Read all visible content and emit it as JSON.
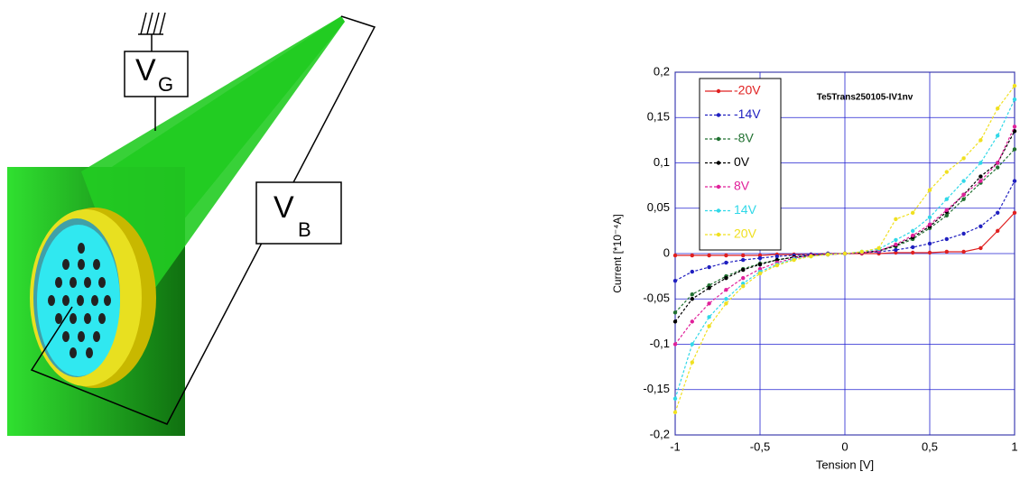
{
  "diagram": {
    "gate_label": {
      "main": "V",
      "sub": "G"
    },
    "bias_label": {
      "main": "V",
      "sub": "B"
    }
  },
  "chart_data": {
    "type": "line",
    "title": "Te5Trans250105-IV1nv",
    "x_label": "Tension [V]",
    "y_label": "Current [*10⁻⁴A]",
    "x": [
      -1,
      -0.9,
      -0.8,
      -0.7,
      -0.6,
      -0.5,
      -0.4,
      -0.3,
      -0.2,
      -0.1,
      0,
      0.1,
      0.2,
      0.3,
      0.4,
      0.5,
      0.6,
      0.7,
      0.8,
      0.9,
      1
    ],
    "series": [
      {
        "name": "-20V",
        "color": "#e02020",
        "values": [
          -0.002,
          -0.002,
          -0.002,
          -0.002,
          -0.002,
          -0.002,
          -0.001,
          -0.001,
          -0.001,
          0,
          0,
          0,
          0,
          0.001,
          0.001,
          0.001,
          0.002,
          0.002,
          0.006,
          0.025,
          0.045
        ]
      },
      {
        "name": "-14V",
        "color": "#2020c0",
        "values": [
          -0.03,
          -0.02,
          -0.015,
          -0.01,
          -0.007,
          -0.005,
          -0.003,
          -0.002,
          -0.001,
          0,
          0,
          0.001,
          0.002,
          0.004,
          0.007,
          0.011,
          0.016,
          0.022,
          0.03,
          0.045,
          0.08
        ]
      },
      {
        "name": "-8V",
        "color": "#207030",
        "values": [
          -0.065,
          -0.045,
          -0.035,
          -0.025,
          -0.017,
          -0.011,
          -0.007,
          -0.004,
          -0.002,
          -0.001,
          0,
          0.001,
          0.003,
          0.008,
          0.016,
          0.028,
          0.042,
          0.06,
          0.078,
          0.095,
          0.115
        ]
      },
      {
        "name": "0V",
        "color": "#000000",
        "values": [
          -0.075,
          -0.05,
          -0.038,
          -0.027,
          -0.018,
          -0.012,
          -0.007,
          -0.004,
          -0.002,
          -0.001,
          0,
          0.001,
          0.003,
          0.009,
          0.018,
          0.03,
          0.046,
          0.065,
          0.085,
          0.1,
          0.135
        ]
      },
      {
        "name": "8V",
        "color": "#e0209a",
        "values": [
          -0.1,
          -0.075,
          -0.055,
          -0.04,
          -0.027,
          -0.017,
          -0.01,
          -0.005,
          -0.002,
          -0.001,
          0,
          0.001,
          0.003,
          0.01,
          0.02,
          0.032,
          0.048,
          0.065,
          0.08,
          0.1,
          0.14
        ]
      },
      {
        "name": "14V",
        "color": "#30d8e8",
        "values": [
          -0.16,
          -0.1,
          -0.07,
          -0.05,
          -0.033,
          -0.02,
          -0.012,
          -0.006,
          -0.003,
          -0.001,
          0,
          0.002,
          0.005,
          0.015,
          0.025,
          0.04,
          0.06,
          0.08,
          0.1,
          0.13,
          0.17
        ]
      },
      {
        "name": "20V",
        "color": "#f0e020",
        "values": [
          -0.175,
          -0.12,
          -0.08,
          -0.055,
          -0.036,
          -0.022,
          -0.013,
          -0.007,
          -0.003,
          -0.001,
          0,
          0.002,
          0.006,
          0.038,
          0.045,
          0.07,
          0.09,
          0.105,
          0.125,
          0.16,
          0.185
        ]
      }
    ],
    "xlim": [
      -1,
      1
    ],
    "xticks": [
      -1,
      {
        "value": -0.5,
        "label": "-0,5"
      },
      0,
      {
        "value": 0.5,
        "label": "0,5"
      },
      1
    ],
    "ylim": [
      -0.2,
      0.2
    ],
    "yticks": [
      {
        "value": -0.2,
        "label": "-0,2"
      },
      {
        "value": -0.15,
        "label": "-0,15"
      },
      {
        "value": -0.1,
        "label": "-0,1"
      },
      {
        "value": -0.05,
        "label": "-0,05"
      },
      0,
      {
        "value": 0.05,
        "label": "0,05"
      },
      {
        "value": 0.1,
        "label": "0,1"
      },
      {
        "value": 0.15,
        "label": "0,15"
      },
      {
        "value": 0.2,
        "label": "0,2"
      }
    ],
    "grid": true,
    "legend": "top-left"
  }
}
